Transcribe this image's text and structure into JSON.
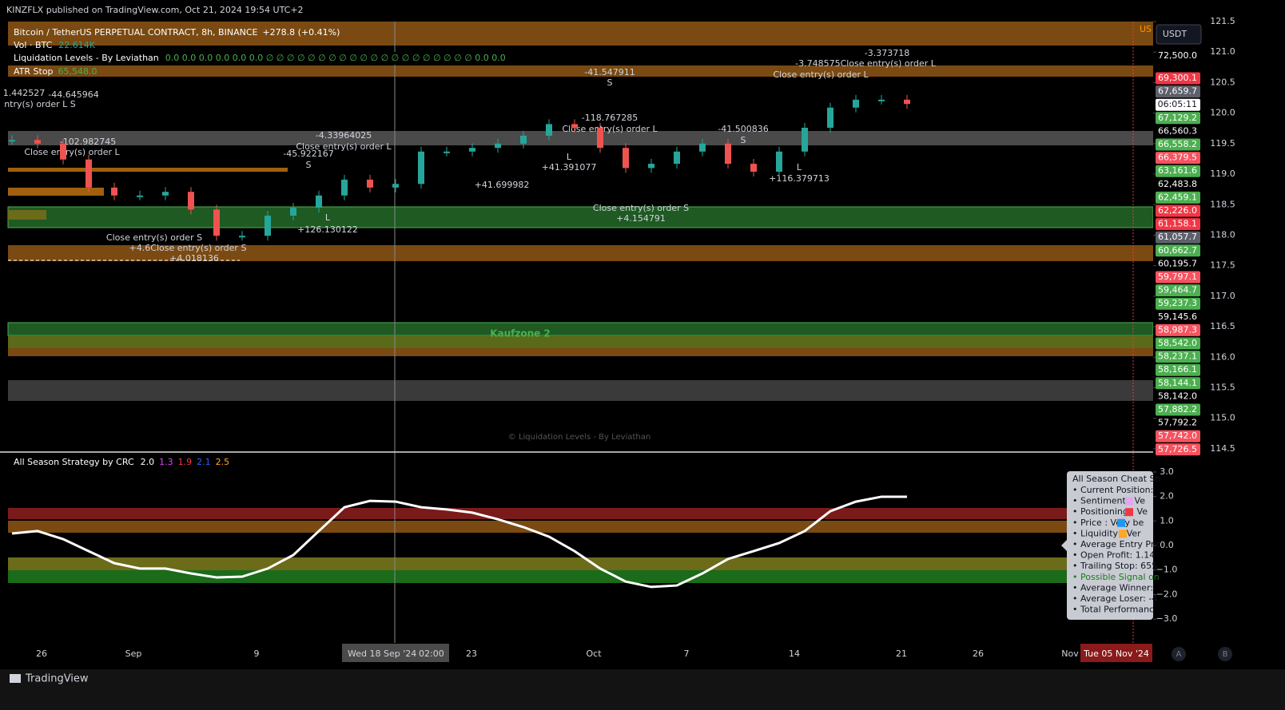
{
  "header": {
    "published": "KINZFLX published on TradingView.com, Oct 21, 2024 19:54 UTC+2"
  },
  "legend": {
    "symbol": "Bitcoin / TetherUS PERPETUAL CONTRACT, 8h, BINANCE",
    "change": "+278.8 (+0.41%)",
    "volume_name": "Vol · BTC",
    "volume_value": "22.614K",
    "liquidation_name": "Liquidation Levels - By Leviathan",
    "liquidation_values": "0.0  0.0  0.0  0.0  0.0  0.0  ∅  ∅  ∅  ∅  ∅  ∅  ∅  ∅  ∅  ∅  ∅  ∅  ∅  ∅  ∅  ∅  ∅  ∅  ∅  ∅  0.0  0.0",
    "atr_name": "ATR Stop",
    "atr_value": "65,548.0",
    "strategy_name": "All Season Strategy by CRC",
    "strategy_values": [
      {
        "text": "2.0",
        "color": "#ffffff"
      },
      {
        "text": "1.3",
        "color": "#e040fb"
      },
      {
        "text": "1.9",
        "color": "#f23645"
      },
      {
        "text": "2.1",
        "color": "#2962ff"
      },
      {
        "text": "2.5",
        "color": "#ffa726"
      }
    ]
  },
  "currency": "USDT",
  "corner_tag": "US",
  "zone_label": "Kaufzone 2",
  "watermark": "© Liquidation Levels - By Leviathan",
  "annotations": [
    "-3.373718",
    "-3.748575Close entry(s) order L",
    "Close entry(s) order L",
    "-41.547911",
    "S",
    "1.442527",
    "-44.645964",
    "ntry(s) order L S",
    "-118.767285",
    "Close entry(s) order L",
    "-41.500836",
    "S",
    "-102.982745",
    "Close entry(s) order L",
    "-4.33964025",
    "Close entry(s) order L",
    "-45.922167",
    "S",
    "+41.391077",
    "+41.699982",
    "+116.379713",
    "L",
    "L",
    "L",
    "Close entry(s) order S",
    "+4.154791",
    "+126.130122",
    "Close entry(s) order S",
    "+4.6Close entry(s) order S",
    "+4.018136"
  ],
  "price_badges": [
    {
      "label": "72,500.0",
      "color": null
    },
    {
      "label": "69,300.1",
      "color": "#f23645"
    },
    {
      "label": "67,659.7",
      "color": "#5d606b"
    },
    {
      "label": "06:05:11",
      "color": "#ffffff"
    },
    {
      "label": "67,129.2",
      "color": "#4caf50"
    },
    {
      "label": "66,560.3",
      "color": null
    },
    {
      "label": "66,558.2",
      "color": "#4caf50"
    },
    {
      "label": "66,379.5",
      "color": "#f7525f"
    },
    {
      "label": "63,161.6",
      "color": "#4caf50"
    },
    {
      "label": "62,483.8",
      "color": null
    },
    {
      "label": "62,459.1",
      "color": "#4caf50"
    },
    {
      "label": "62,226.0",
      "color": "#f23645"
    },
    {
      "label": "61,158.1",
      "color": "#f23645"
    },
    {
      "label": "61,057.7",
      "color": "#5d606b"
    },
    {
      "label": "60,662.7",
      "color": "#4caf50"
    },
    {
      "label": "60,195.7",
      "color": null
    },
    {
      "label": "59,797.1",
      "color": "#f7525f"
    },
    {
      "label": "59,464.7",
      "color": "#4caf50"
    },
    {
      "label": "59,237.3",
      "color": "#4caf50"
    },
    {
      "label": "59,145.6",
      "color": null
    },
    {
      "label": "58,987.3",
      "color": "#f7525f"
    },
    {
      "label": "58,542.0",
      "color": "#4caf50"
    },
    {
      "label": "58,237.1",
      "color": "#4caf50"
    },
    {
      "label": "58,166.1",
      "color": "#4caf50"
    },
    {
      "label": "58,144.1",
      "color": "#4caf50"
    },
    {
      "label": "58,142.0",
      "color": null
    },
    {
      "label": "57,882.2",
      "color": "#4caf50"
    },
    {
      "label": "57,792.2",
      "color": null
    },
    {
      "label": "57,742.0",
      "color": "#f7525f"
    },
    {
      "label": "57,726.5",
      "color": "#f7525f"
    }
  ],
  "time_axis": {
    "labels": [
      "26",
      "Sep",
      "9",
      "23",
      "Oct",
      "7",
      "14",
      "21",
      "26",
      "Nov"
    ],
    "crosshair_date": "Wed 18 Sep '24",
    "crosshair_time": "02:00",
    "marker_date": "Tue 05 Nov '24"
  },
  "info_box": {
    "title": "All Season Cheat Sh",
    "lines": [
      "• Current Position:",
      "• Sentiment      : Ve",
      "• Positioning      : Ve",
      "• Price      : Very be",
      "• Liquidity      : Ver",
      "• Average Entry Pric",
      "• Open Profit: 1.14",
      "• Trailing Stop: 655",
      "• Possible Signal on",
      "• Average Winner: ",
      "• Average Loser: -4",
      "• Total Performanc"
    ]
  },
  "scale_buttons": [
    "A",
    "B"
  ],
  "footer": {
    "brand": "TradingView"
  },
  "chart_data": [
    {
      "type": "candle",
      "color_up": "#26a69a",
      "color_down": "#ef5350",
      "values": [
        119.56,
        119.5,
        119.24,
        118.78,
        118.65,
        118.65,
        118.71,
        118.42,
        117.99,
        117.99,
        118.32,
        118.45,
        118.65,
        118.91,
        118.78,
        118.84,
        119.37,
        119.37,
        119.43,
        119.5,
        119.63,
        119.82,
        119.76,
        119.43,
        119.1,
        119.17,
        119.37,
        119.5,
        119.17,
        119.04,
        119.37,
        119.76,
        120.09,
        120.22,
        120.22,
        120.15
      ],
      "ylim": [
        114.46,
        121.5
      ],
      "yticks": [
        {
          "value": 121.5,
          "label": "121.5"
        },
        {
          "value": 121,
          "label": "121.0"
        },
        {
          "value": 120.5,
          "label": "120.5"
        },
        {
          "value": 120,
          "label": "120.0"
        },
        {
          "value": 119.5,
          "label": "119.5"
        },
        {
          "value": 119,
          "label": "119.0"
        },
        {
          "value": 118.5,
          "label": "118.5"
        },
        {
          "value": 118,
          "label": "118.0"
        },
        {
          "value": 117.5,
          "label": "117.5"
        },
        {
          "value": 117,
          "label": "117.0"
        },
        {
          "value": 116.5,
          "label": "116.5"
        },
        {
          "value": 116,
          "label": "116.0"
        },
        {
          "value": 115.5,
          "label": "115.5"
        },
        {
          "value": 115,
          "label": "115.0"
        },
        {
          "value": 114.5,
          "label": "114.5"
        }
      ]
    },
    {
      "type": "line",
      "color": "#ffffff",
      "values": [
        0.49,
        0.59,
        0.26,
        -0.23,
        -0.72,
        -0.94,
        -0.94,
        -1.14,
        -1.3,
        -1.27,
        -0.94,
        -0.39,
        0.59,
        1.56,
        1.82,
        1.79,
        1.56,
        1.47,
        1.34,
        1.07,
        0.75,
        0.36,
        -0.23,
        -0.94,
        -1.47,
        -1.69,
        -1.63,
        -1.14,
        -0.55,
        -0.23,
        0.1,
        0.59,
        1.4,
        1.79,
        1.99,
        1.99
      ],
      "ylim": [
        -3.81,
        3.78
      ],
      "yticks": [
        {
          "value": 3,
          "label": "3.0"
        },
        {
          "value": 2,
          "label": "2.0"
        },
        {
          "value": 1,
          "label": "1.0"
        },
        {
          "value": 0,
          "label": "0.0"
        },
        {
          "value": -1,
          "label": "−1.0"
        },
        {
          "value": -2,
          "label": "−2.0"
        },
        {
          "value": -3,
          "label": "−3.0"
        }
      ]
    }
  ]
}
